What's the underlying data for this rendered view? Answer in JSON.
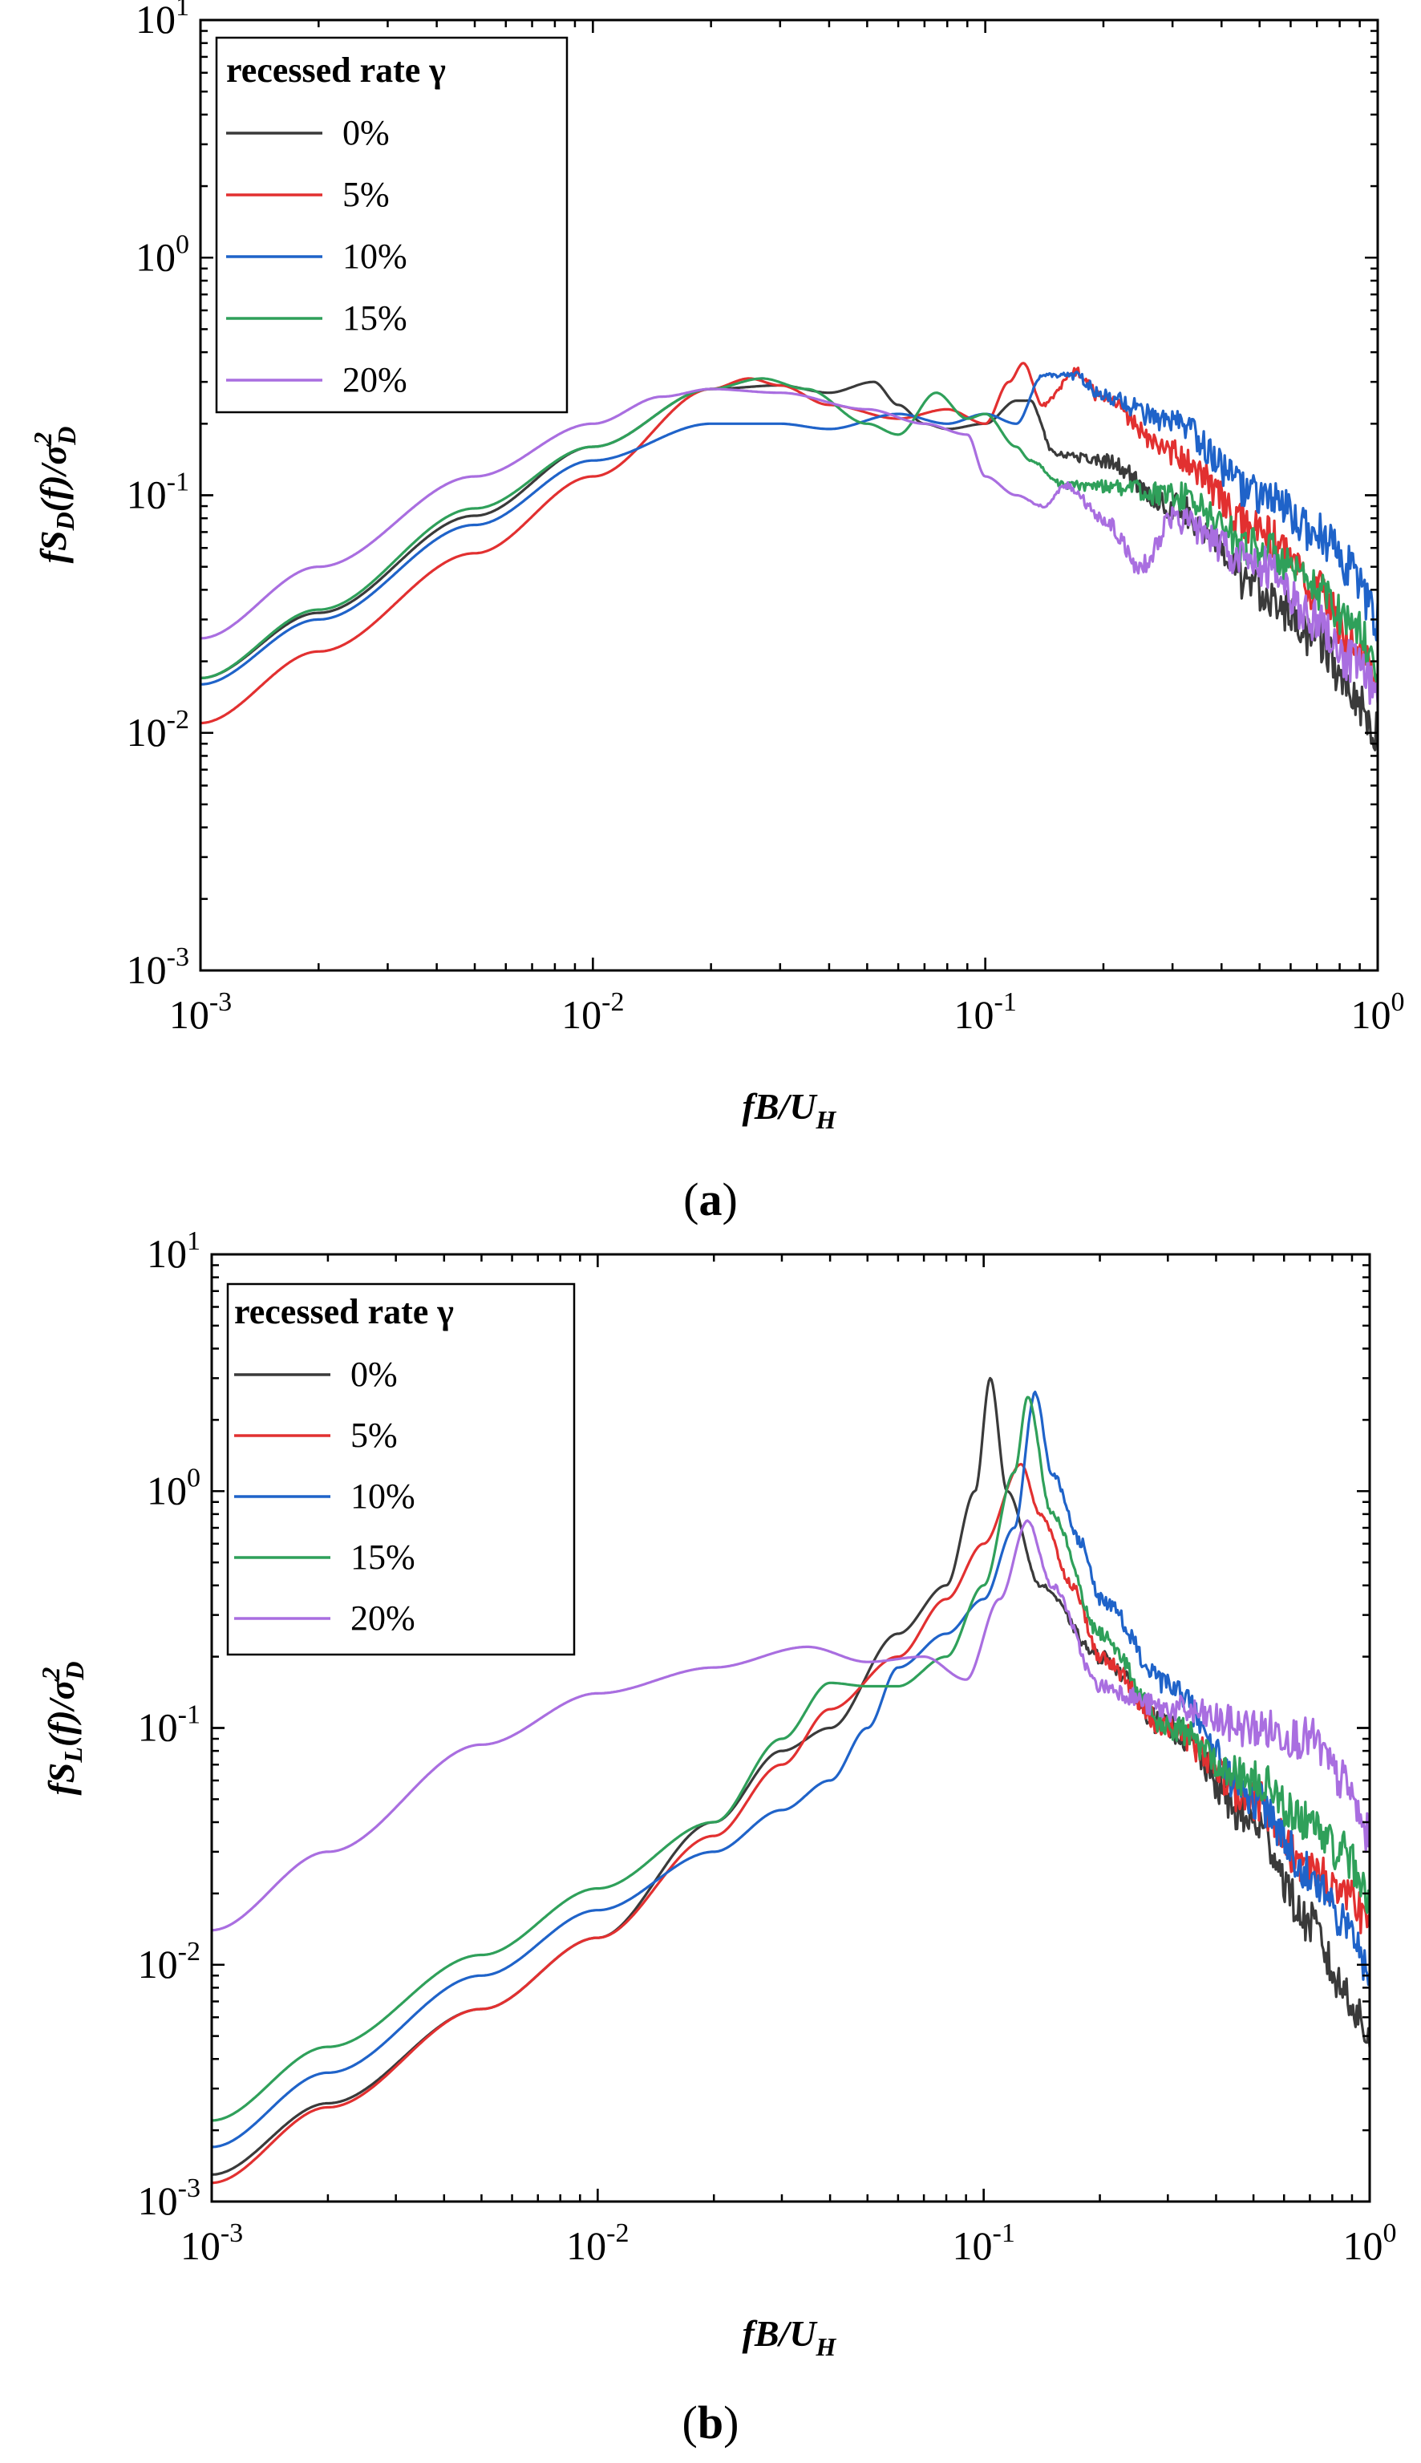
{
  "chart_data": [
    {
      "type": "line",
      "panel_label": "(a)",
      "xscale": "log",
      "yscale": "log",
      "xlim": [
        0.001,
        1
      ],
      "ylim": [
        0.001,
        10
      ],
      "xlabel": {
        "main": "fB/U",
        "sub": "H"
      },
      "ylabel": {
        "pre": "fS",
        "sub1": "D",
        "mid": "(f)/σ",
        "sup": "2",
        "sub2": "D"
      },
      "x_ticks": [
        {
          "base": "10",
          "exp": "-3"
        },
        {
          "base": "10",
          "exp": "-2"
        },
        {
          "base": "10",
          "exp": "-1"
        },
        {
          "base": "10",
          "exp": "0"
        }
      ],
      "y_ticks": [
        {
          "base": "10",
          "exp": "-3"
        },
        {
          "base": "10",
          "exp": "-2"
        },
        {
          "base": "10",
          "exp": "-1"
        },
        {
          "base": "10",
          "exp": "0"
        },
        {
          "base": "10",
          "exp": "1"
        }
      ],
      "legend": {
        "title": "recessed rate γ",
        "position": "top-left"
      },
      "series": [
        {
          "name": "0%",
          "color": "#3a3a3a",
          "x": [
            0.001,
            0.002,
            0.005,
            0.01,
            0.02,
            0.03,
            0.04,
            0.052,
            0.06,
            0.07,
            0.08,
            0.1,
            0.12,
            0.13,
            0.15,
            0.2,
            0.3,
            0.5,
            0.7,
            0.85,
            1.0
          ],
          "y": [
            0.017,
            0.032,
            0.082,
            0.16,
            0.28,
            0.29,
            0.27,
            0.3,
            0.24,
            0.2,
            0.19,
            0.2,
            0.25,
            0.25,
            0.15,
            0.14,
            0.09,
            0.04,
            0.025,
            0.015,
            0.01
          ]
        },
        {
          "name": "5%",
          "color": "#e23030",
          "x": [
            0.001,
            0.002,
            0.005,
            0.01,
            0.02,
            0.025,
            0.03,
            0.04,
            0.06,
            0.08,
            0.1,
            0.115,
            0.125,
            0.14,
            0.17,
            0.2,
            0.3,
            0.5,
            0.7,
            0.85,
            1.0
          ],
          "y": [
            0.011,
            0.022,
            0.057,
            0.12,
            0.28,
            0.31,
            0.29,
            0.24,
            0.21,
            0.23,
            0.2,
            0.3,
            0.36,
            0.24,
            0.33,
            0.25,
            0.15,
            0.07,
            0.04,
            0.025,
            0.017
          ]
        },
        {
          "name": "10%",
          "color": "#1f63c9",
          "x": [
            0.001,
            0.002,
            0.005,
            0.01,
            0.02,
            0.03,
            0.04,
            0.06,
            0.08,
            0.1,
            0.12,
            0.14,
            0.17,
            0.2,
            0.3,
            0.5,
            0.7,
            0.85,
            1.0
          ],
          "y": [
            0.016,
            0.03,
            0.075,
            0.14,
            0.2,
            0.2,
            0.19,
            0.22,
            0.2,
            0.22,
            0.2,
            0.32,
            0.32,
            0.26,
            0.2,
            0.1,
            0.07,
            0.05,
            0.03
          ]
        },
        {
          "name": "15%",
          "color": "#2fa05a",
          "x": [
            0.001,
            0.002,
            0.005,
            0.01,
            0.02,
            0.027,
            0.035,
            0.05,
            0.06,
            0.075,
            0.09,
            0.1,
            0.12,
            0.13,
            0.16,
            0.2,
            0.3,
            0.5,
            0.7,
            0.85,
            1.0
          ],
          "y": [
            0.017,
            0.033,
            0.088,
            0.16,
            0.28,
            0.31,
            0.28,
            0.2,
            0.18,
            0.27,
            0.21,
            0.22,
            0.16,
            0.14,
            0.11,
            0.11,
            0.1,
            0.06,
            0.04,
            0.03,
            0.02
          ]
        },
        {
          "name": "20%",
          "color": "#a96ee0",
          "x": [
            0.001,
            0.002,
            0.005,
            0.01,
            0.015,
            0.02,
            0.03,
            0.05,
            0.07,
            0.09,
            0.1,
            0.12,
            0.14,
            0.16,
            0.2,
            0.25,
            0.3,
            0.5,
            0.7,
            0.85,
            1.0
          ],
          "y": [
            0.025,
            0.05,
            0.12,
            0.2,
            0.26,
            0.28,
            0.27,
            0.23,
            0.2,
            0.18,
            0.12,
            0.1,
            0.09,
            0.11,
            0.08,
            0.05,
            0.08,
            0.05,
            0.03,
            0.02,
            0.015
          ]
        }
      ]
    },
    {
      "type": "line",
      "panel_label": "(b)",
      "xscale": "log",
      "yscale": "log",
      "xlim": [
        0.001,
        1
      ],
      "ylim": [
        0.001,
        10
      ],
      "xlabel": {
        "main": "fB/U",
        "sub": "H"
      },
      "ylabel": {
        "pre": "fS",
        "sub1": "L",
        "mid": "(f)/σ",
        "sup": "2",
        "sub2": "D"
      },
      "x_ticks": [
        {
          "base": "10",
          "exp": "-3"
        },
        {
          "base": "10",
          "exp": "-2"
        },
        {
          "base": "10",
          "exp": "-1"
        },
        {
          "base": "10",
          "exp": "0"
        }
      ],
      "y_ticks": [
        {
          "base": "10",
          "exp": "-3"
        },
        {
          "base": "10",
          "exp": "-2"
        },
        {
          "base": "10",
          "exp": "-1"
        },
        {
          "base": "10",
          "exp": "0"
        },
        {
          "base": "10",
          "exp": "1"
        }
      ],
      "legend": {
        "title": "recessed rate γ",
        "position": "top-left"
      },
      "series": [
        {
          "name": "0%",
          "color": "#3a3a3a",
          "x": [
            0.001,
            0.002,
            0.005,
            0.01,
            0.02,
            0.03,
            0.04,
            0.06,
            0.08,
            0.095,
            0.104,
            0.115,
            0.14,
            0.2,
            0.3,
            0.5,
            0.7,
            0.85,
            1.0
          ],
          "y": [
            0.0013,
            0.0026,
            0.0065,
            0.013,
            0.04,
            0.08,
            0.1,
            0.25,
            0.4,
            1.0,
            3.0,
            1.0,
            0.4,
            0.2,
            0.1,
            0.04,
            0.015,
            0.008,
            0.005
          ]
        },
        {
          "name": "5%",
          "color": "#e23030",
          "x": [
            0.001,
            0.002,
            0.005,
            0.01,
            0.02,
            0.03,
            0.04,
            0.06,
            0.08,
            0.1,
            0.125,
            0.14,
            0.17,
            0.2,
            0.3,
            0.5,
            0.7,
            0.85,
            1.0
          ],
          "y": [
            0.0012,
            0.0025,
            0.0065,
            0.013,
            0.035,
            0.07,
            0.12,
            0.2,
            0.35,
            0.6,
            1.3,
            0.8,
            0.4,
            0.2,
            0.1,
            0.05,
            0.025,
            0.02,
            0.015
          ]
        },
        {
          "name": "10%",
          "color": "#1f63c9",
          "x": [
            0.001,
            0.002,
            0.005,
            0.01,
            0.02,
            0.03,
            0.04,
            0.05,
            0.06,
            0.08,
            0.1,
            0.12,
            0.136,
            0.15,
            0.18,
            0.2,
            0.3,
            0.5,
            0.7,
            0.85,
            1.0
          ],
          "y": [
            0.0017,
            0.0035,
            0.009,
            0.017,
            0.03,
            0.045,
            0.06,
            0.1,
            0.18,
            0.25,
            0.35,
            0.7,
            2.6,
            1.2,
            0.6,
            0.35,
            0.15,
            0.05,
            0.025,
            0.015,
            0.01
          ]
        },
        {
          "name": "15%",
          "color": "#2fa05a",
          "x": [
            0.001,
            0.002,
            0.005,
            0.01,
            0.02,
            0.03,
            0.04,
            0.05,
            0.06,
            0.08,
            0.1,
            0.12,
            0.13,
            0.15,
            0.2,
            0.3,
            0.5,
            0.7,
            0.85,
            1.0
          ],
          "y": [
            0.0022,
            0.0045,
            0.011,
            0.021,
            0.04,
            0.09,
            0.155,
            0.15,
            0.15,
            0.2,
            0.4,
            1.2,
            2.5,
            0.8,
            0.25,
            0.1,
            0.06,
            0.04,
            0.03,
            0.02
          ]
        },
        {
          "name": "20%",
          "color": "#a96ee0",
          "x": [
            0.001,
            0.002,
            0.005,
            0.01,
            0.02,
            0.035,
            0.05,
            0.07,
            0.09,
            0.11,
            0.13,
            0.15,
            0.2,
            0.3,
            0.5,
            0.7,
            0.85,
            1.0
          ],
          "y": [
            0.014,
            0.03,
            0.085,
            0.14,
            0.18,
            0.22,
            0.19,
            0.2,
            0.16,
            0.35,
            0.75,
            0.4,
            0.15,
            0.12,
            0.1,
            0.09,
            0.06,
            0.035
          ]
        }
      ]
    }
  ]
}
